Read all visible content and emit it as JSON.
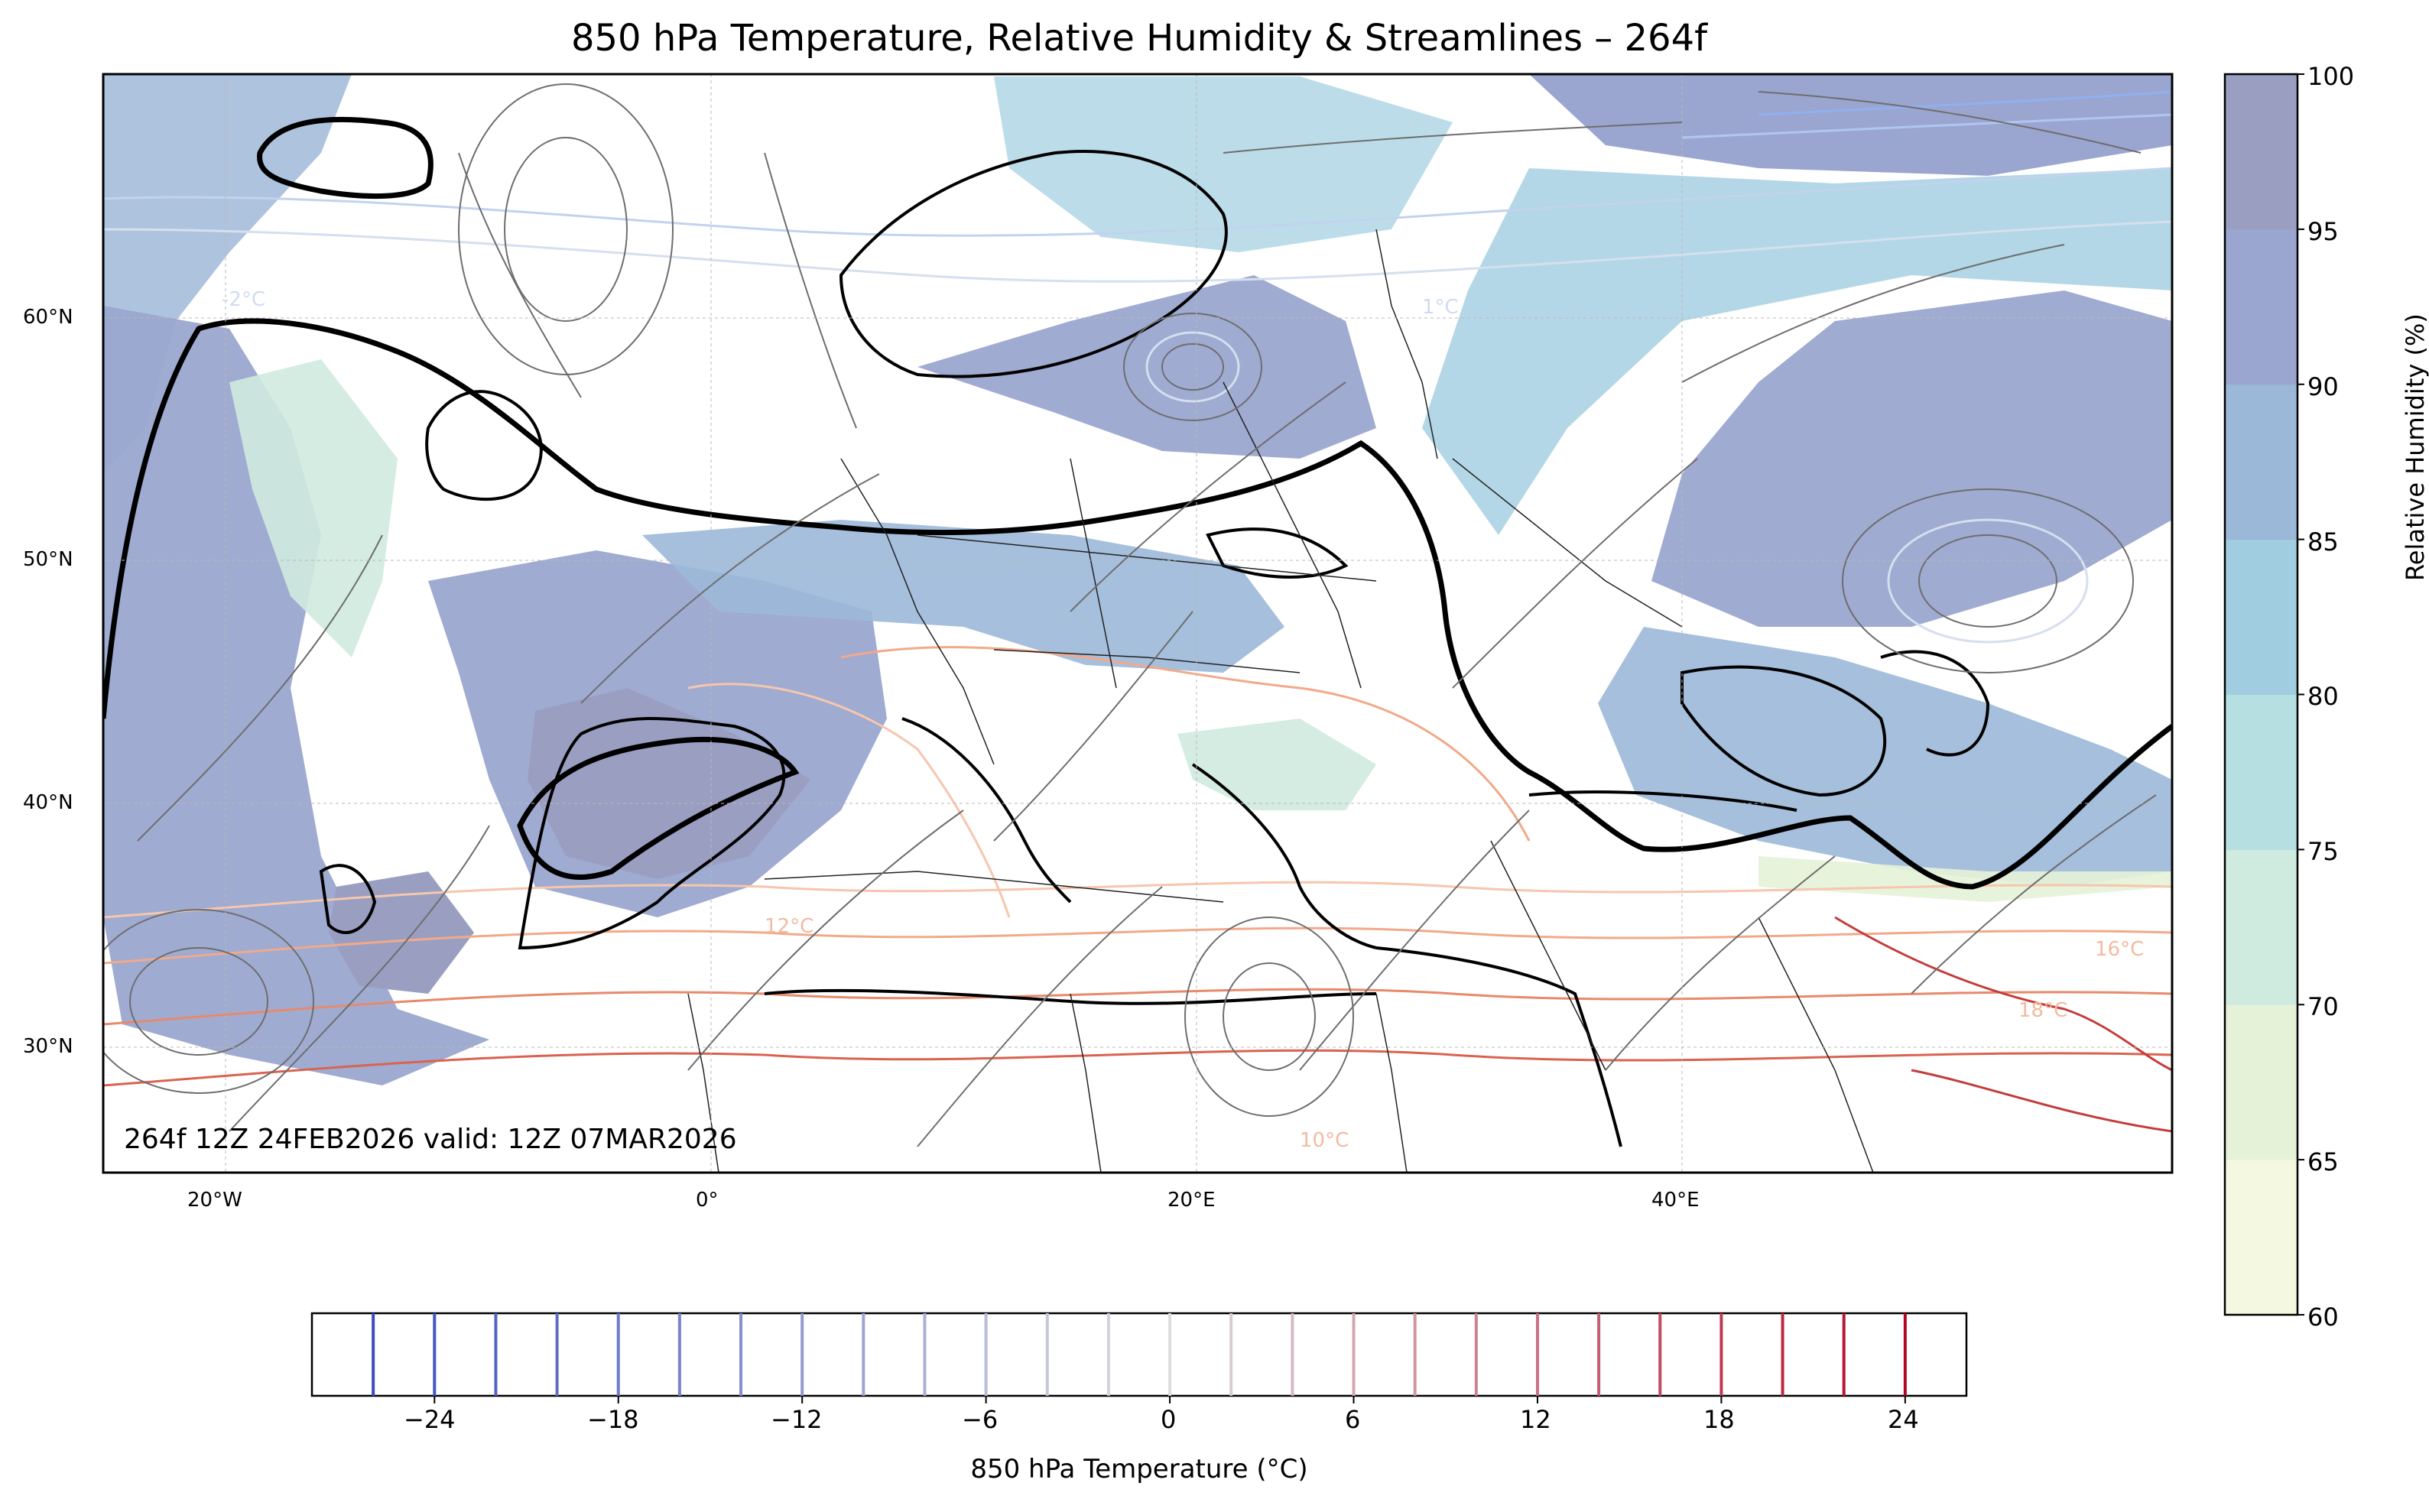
{
  "title": "850 hPa Temperature, Relative Humidity & Streamlines – 264f",
  "valid_label": "264f 12Z 24FEB2026 valid: 12Z 07MAR2026",
  "map": {
    "lon_ticks": [
      "20°W",
      "0°",
      "20°E",
      "40°E"
    ],
    "lat_ticks": [
      "60°N",
      "50°N",
      "40°N",
      "30°N"
    ],
    "contour_labels": [
      "-2°C",
      "1°C",
      "12°C",
      "10°C",
      "16°C",
      "18°C"
    ]
  },
  "rh_colorbar": {
    "title": "Relative Humidity (%)",
    "ticks": [
      "100",
      "95",
      "90",
      "85",
      "80",
      "75",
      "70",
      "65",
      "60"
    ],
    "colors": [
      "#f5f8e0",
      "#e6f2d8",
      "#cfeadf",
      "#b5dfe0",
      "#a0cde0",
      "#9bb8d8",
      "#9aa6cf",
      "#9a9fc2"
    ]
  },
  "temp_colorbar": {
    "title": "850 hPa Temperature (°C)",
    "ticks": [
      "−24",
      "−18",
      "−12",
      "−6",
      "0",
      "6",
      "12",
      "18",
      "24"
    ],
    "cold_color": "#3b4cc0",
    "warm_color": "#b40426"
  }
}
